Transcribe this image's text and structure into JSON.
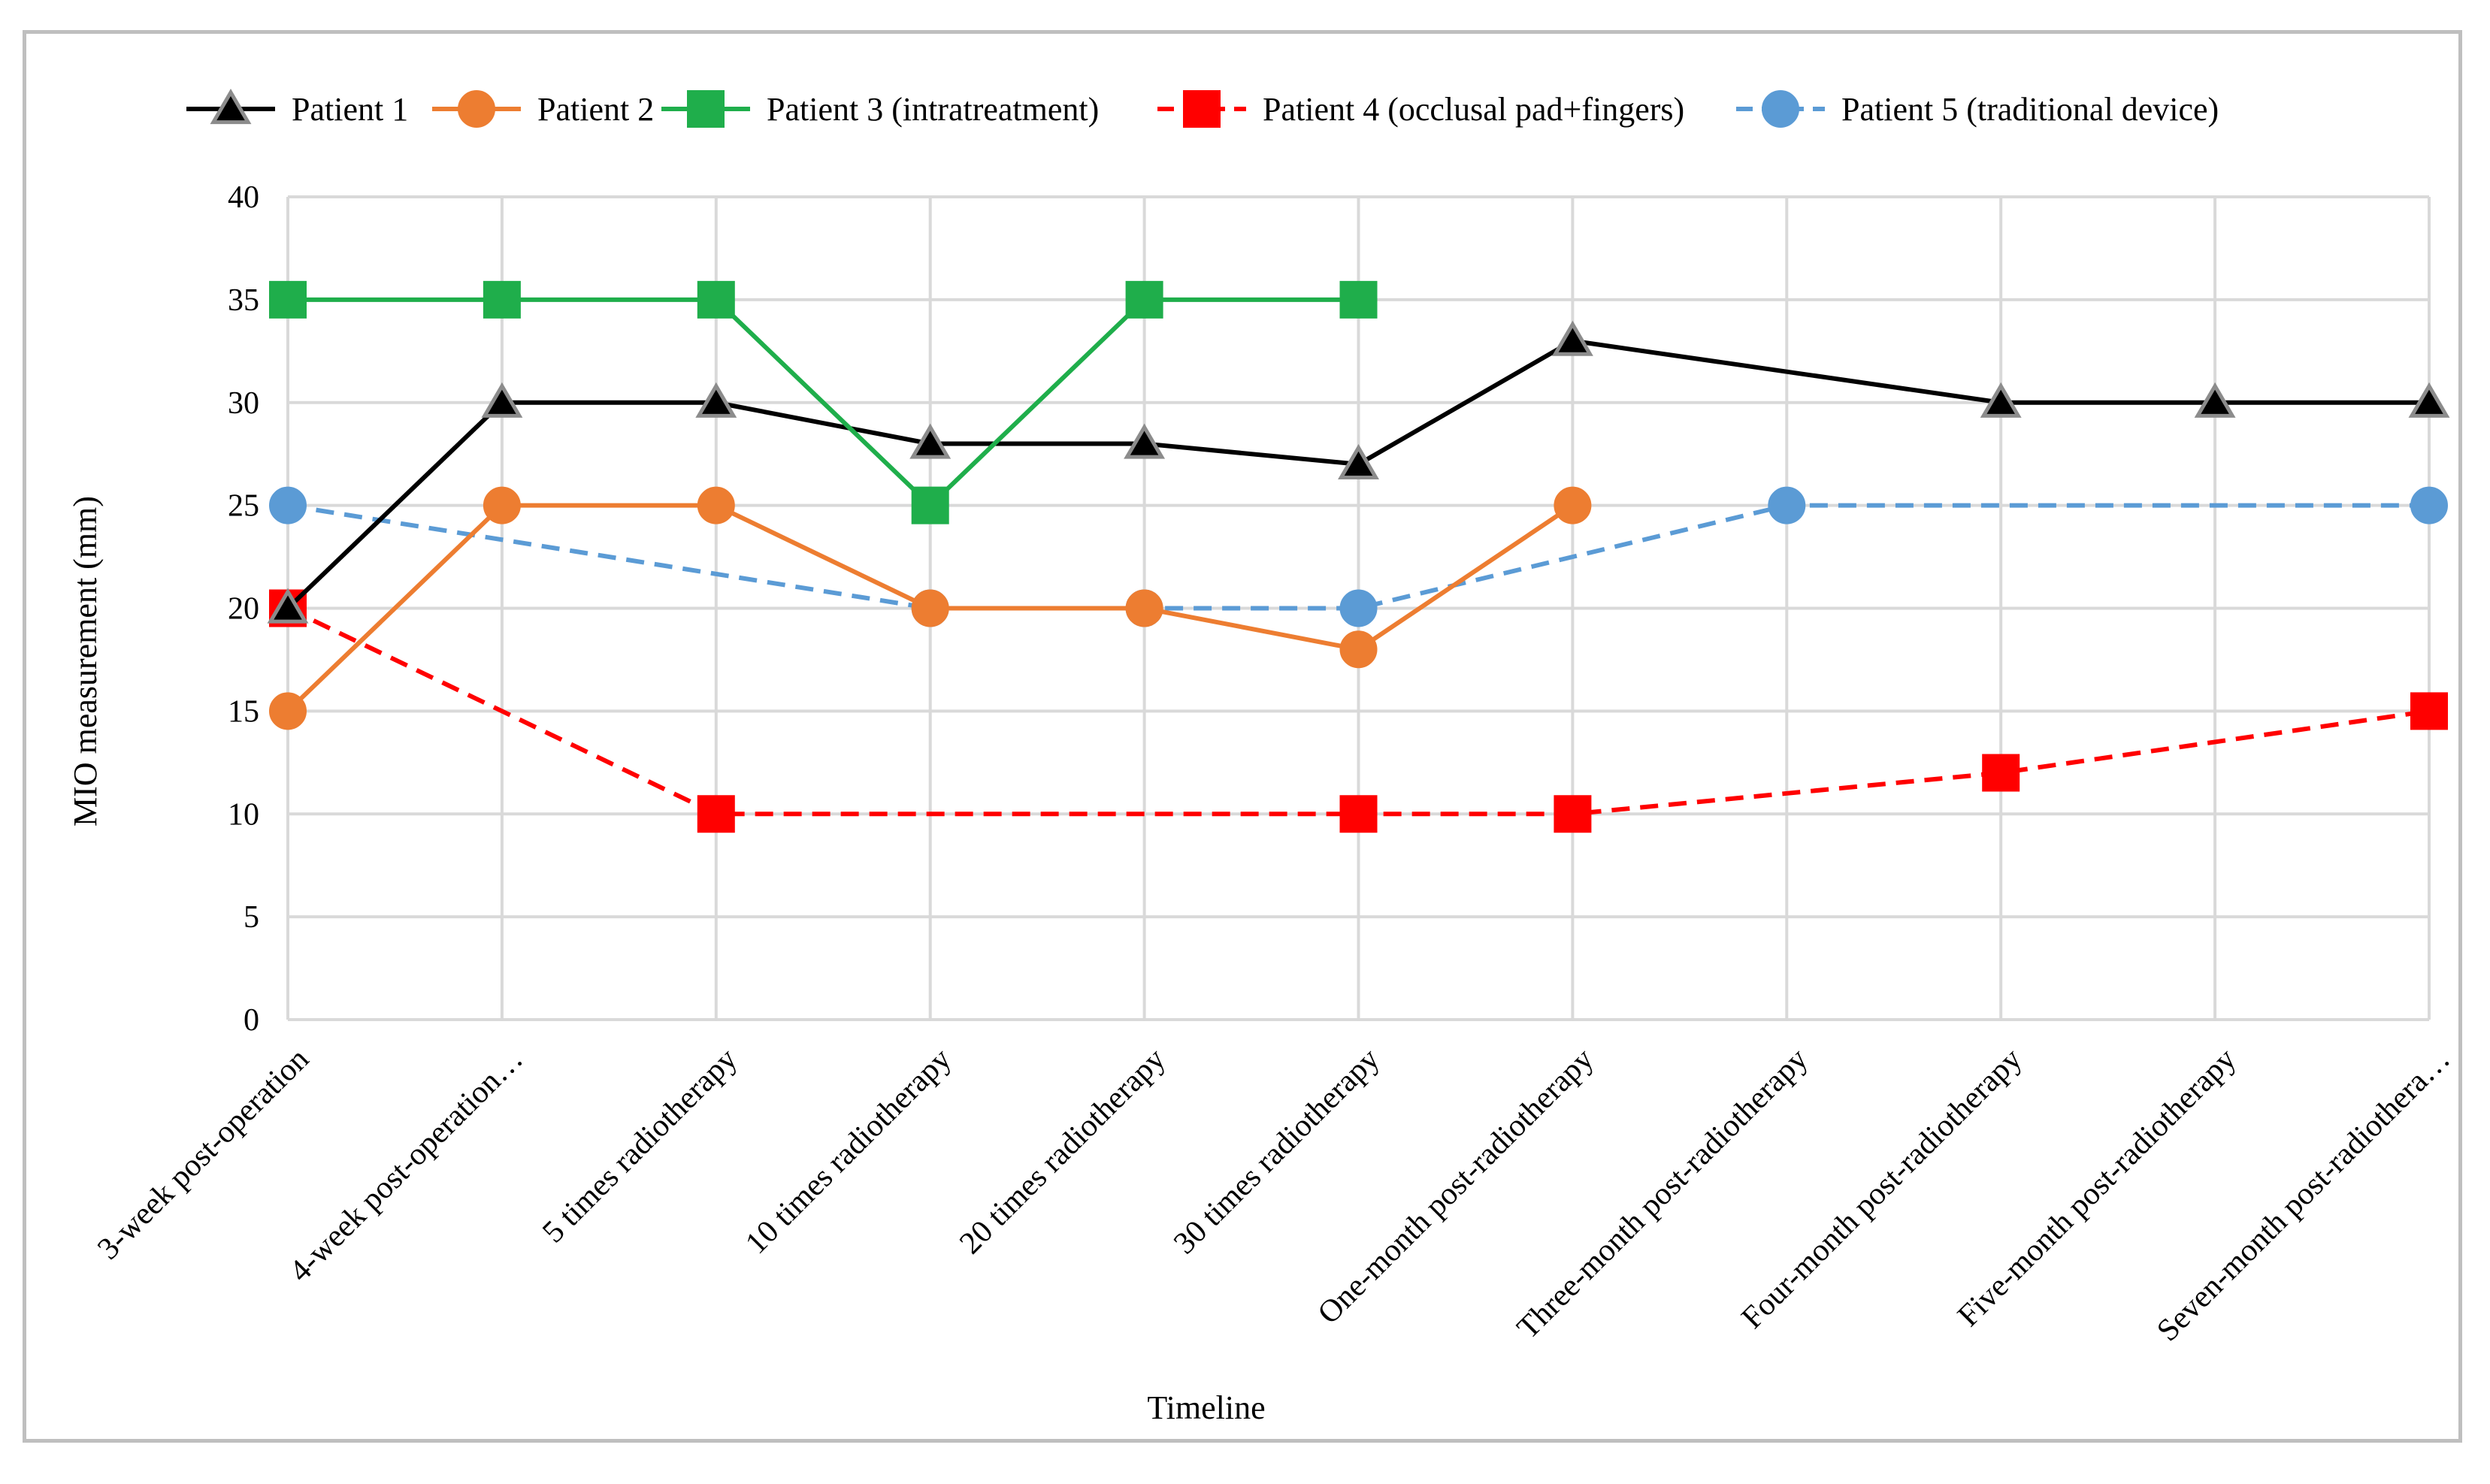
{
  "chart_data": {
    "type": "line",
    "title": "",
    "xlabel": "Timeline",
    "ylabel": "MIO measurement (mm)",
    "ylim": [
      0,
      40
    ],
    "yticks": [
      0,
      5,
      10,
      15,
      20,
      25,
      30,
      35,
      40
    ],
    "grid": true,
    "legend_position": "top",
    "categories": [
      "3-week post-operation",
      "4-week post-operation…",
      "5 times radiotherapy",
      "10 times radiotherapy",
      "20 times radiotherapy",
      "30 times radiotherapy",
      "One-month post-radiotherapy",
      "Three-month post-radiotherapy",
      "Four-month post-radiotherapy",
      "Five-month post-radiotherapy",
      "Seven-month post-radiothera…"
    ],
    "series": [
      {
        "name": "Patient 1",
        "color": "#000000",
        "marker": "triangle",
        "dash": "solid",
        "values": [
          20,
          30,
          30,
          28,
          28,
          27,
          33,
          null,
          30,
          30,
          30
        ]
      },
      {
        "name": "Patient 2",
        "color": "#ed7d31",
        "marker": "circle",
        "dash": "solid",
        "values": [
          15,
          25,
          25,
          20,
          20,
          18,
          25,
          null,
          null,
          null,
          null
        ]
      },
      {
        "name": "Patient 3 (intratreatment)",
        "color": "#1fae4b",
        "marker": "square",
        "dash": "solid",
        "values": [
          35,
          35,
          35,
          25,
          35,
          35,
          null,
          null,
          null,
          null,
          null
        ]
      },
      {
        "name": "Patient 4 (occlusal pad+fingers)",
        "color": "#ff0000",
        "marker": "square",
        "dash": "dashed",
        "values": [
          20,
          null,
          10,
          null,
          null,
          10,
          10,
          null,
          12,
          null,
          15
        ]
      },
      {
        "name": "Patient 5 (traditional device)",
        "color": "#5b9bd5",
        "marker": "circle",
        "dash": "dashed",
        "values": [
          25,
          null,
          null,
          20,
          20,
          20,
          null,
          25,
          null,
          null,
          25
        ]
      }
    ]
  }
}
